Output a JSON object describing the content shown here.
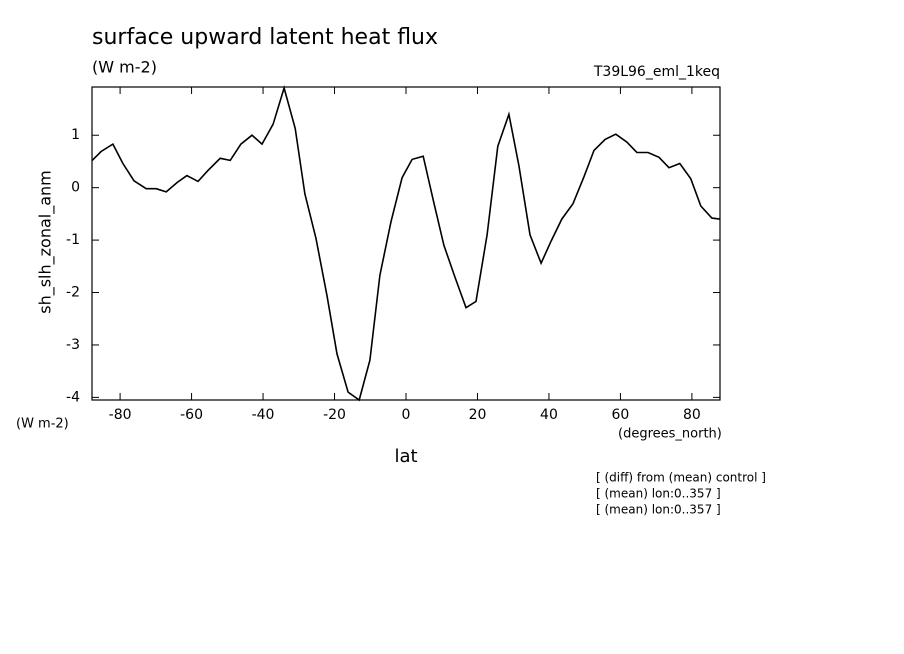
{
  "chart_data": {
    "type": "line",
    "title": "surface upward latent heat flux",
    "subtitle": "(W m-2)",
    "run_label": "T39L96_eml_1keq",
    "y_label": "sh_slh_zonal_anm",
    "y_units": "(W m-2)",
    "x_units": "(degrees_north)",
    "x_label": "lat",
    "notes": [
      "[ (diff) from (mean) control ]",
      "[ (mean) lon:0..357 ]",
      "[ (mean) lon:0..357 ]"
    ],
    "color": "#000000",
    "x": [
      -87.8,
      -85.3,
      -82.0,
      -79.2,
      -76.1,
      -72.7,
      -69.9,
      -67.1,
      -64.0,
      -61.3,
      -58.2,
      -55.4,
      -52.0,
      -49.2,
      -46.2,
      -43.1,
      -40.3,
      -37.2,
      -34.1,
      -31.0,
      -28.3,
      -25.2,
      -22.1,
      -19.3,
      -16.2,
      -13.1,
      -10.1,
      -7.3,
      -4.2,
      -1.1,
      1.7,
      4.8,
      7.8,
      10.6,
      13.7,
      16.8,
      19.6,
      22.7,
      25.7,
      28.8,
      31.6,
      34.7,
      37.8,
      40.6,
      43.6,
      46.7,
      49.8,
      52.6,
      55.7,
      58.7,
      61.8,
      64.6,
      67.7,
      70.8,
      73.6,
      76.6,
      79.7,
      82.5,
      85.6,
      87.8
    ],
    "values": [
      0.52,
      0.69,
      0.83,
      0.46,
      0.13,
      -0.02,
      -0.02,
      -0.08,
      0.1,
      0.23,
      0.12,
      0.33,
      0.56,
      0.52,
      0.83,
      1.0,
      0.83,
      1.21,
      1.9,
      1.13,
      -0.12,
      -0.96,
      -2.06,
      -3.17,
      -3.9,
      -4.05,
      -3.29,
      -1.67,
      -0.65,
      0.19,
      0.54,
      0.6,
      -0.29,
      -1.1,
      -1.71,
      -2.29,
      -2.17,
      -0.9,
      0.79,
      1.4,
      0.42,
      -0.9,
      -1.44,
      -1.02,
      -0.6,
      -0.31,
      0.21,
      0.71,
      0.92,
      1.02,
      0.87,
      0.67,
      0.67,
      0.58,
      0.38,
      0.46,
      0.17,
      -0.35,
      -0.58,
      -0.6
    ],
    "xlim": [
      -87.86,
      87.86
    ],
    "xticks": [
      -80,
      -60,
      -40,
      -20,
      0,
      20,
      40,
      60,
      80
    ],
    "ylim": [
      -4.05,
      1.92
    ],
    "yticks": [
      -4,
      -3,
      -2,
      -1,
      0,
      1
    ]
  }
}
